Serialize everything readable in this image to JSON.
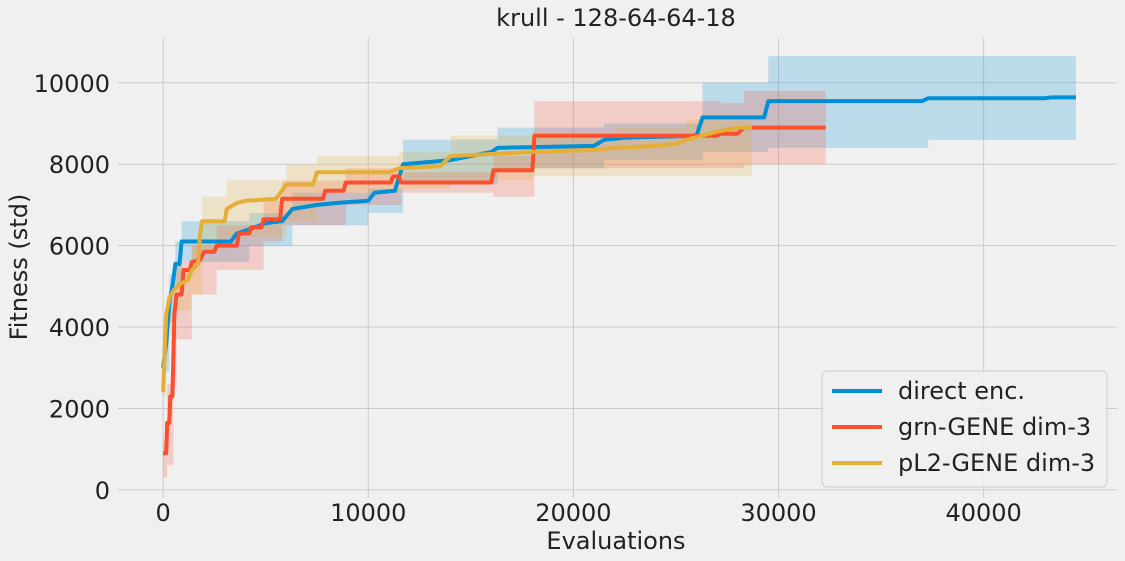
{
  "chart_data": {
    "type": "line",
    "title": "krull - 128-64-64-18",
    "xlabel": "Evaluations",
    "ylabel": "Fitness (std)",
    "xlim": [
      -2200,
      46500
    ],
    "ylim": [
      -200,
      11100
    ],
    "xticks": [
      0,
      10000,
      20000,
      30000,
      40000
    ],
    "yticks": [
      0,
      2000,
      4000,
      6000,
      8000,
      10000
    ],
    "grid": true,
    "legend_position": "lower-right",
    "series": [
      {
        "name": "direct enc.",
        "color": "#008fd5",
        "points": [
          [
            0,
            3000
          ],
          [
            150,
            3600
          ],
          [
            300,
            4600
          ],
          [
            450,
            5000
          ],
          [
            600,
            5550
          ],
          [
            800,
            5550
          ],
          [
            900,
            6100
          ],
          [
            3300,
            6100
          ],
          [
            3600,
            6300
          ],
          [
            4200,
            6400
          ],
          [
            5000,
            6550
          ],
          [
            5800,
            6600
          ],
          [
            6300,
            6900
          ],
          [
            7500,
            7000
          ],
          [
            8500,
            7050
          ],
          [
            10000,
            7100
          ],
          [
            10300,
            7300
          ],
          [
            11300,
            7350
          ],
          [
            11700,
            8000
          ],
          [
            14000,
            8100
          ],
          [
            16000,
            8300
          ],
          [
            16300,
            8400
          ],
          [
            21000,
            8450
          ],
          [
            21500,
            8600
          ],
          [
            22500,
            8650
          ],
          [
            26000,
            8700
          ],
          [
            26300,
            9150
          ],
          [
            29300,
            9150
          ],
          [
            29500,
            9550
          ],
          [
            37000,
            9550
          ],
          [
            37300,
            9620
          ],
          [
            43000,
            9620
          ],
          [
            43300,
            9640
          ],
          [
            44500,
            9640
          ]
        ],
        "band": [
          [
            0,
            2900,
            3800
          ],
          [
            300,
            4100,
            5300
          ],
          [
            600,
            5000,
            6100
          ],
          [
            900,
            5600,
            6600
          ],
          [
            3300,
            5600,
            6600
          ],
          [
            4200,
            6000,
            6800
          ],
          [
            6300,
            6500,
            7300
          ],
          [
            10000,
            6800,
            7400
          ],
          [
            11700,
            7500,
            8600
          ],
          [
            16300,
            7900,
            8900
          ],
          [
            21500,
            8100,
            9000
          ],
          [
            26300,
            8300,
            10000
          ],
          [
            29500,
            8400,
            10650
          ],
          [
            37000,
            8400,
            10650
          ],
          [
            37300,
            8600,
            10650
          ],
          [
            44500,
            8650,
            10650
          ]
        ]
      },
      {
        "name": "grn-GENE dim-3",
        "color": "#fc4f30",
        "points": [
          [
            0,
            900
          ],
          [
            150,
            900
          ],
          [
            200,
            1650
          ],
          [
            300,
            1650
          ],
          [
            350,
            2300
          ],
          [
            450,
            2300
          ],
          [
            500,
            3300
          ],
          [
            550,
            4300
          ],
          [
            650,
            4800
          ],
          [
            900,
            4800
          ],
          [
            1000,
            5400
          ],
          [
            1300,
            5400
          ],
          [
            1400,
            5600
          ],
          [
            1800,
            5650
          ],
          [
            2000,
            5850
          ],
          [
            2500,
            5850
          ],
          [
            2600,
            6000
          ],
          [
            3600,
            6000
          ],
          [
            3700,
            6300
          ],
          [
            4200,
            6300
          ],
          [
            4300,
            6450
          ],
          [
            4800,
            6450
          ],
          [
            4900,
            6650
          ],
          [
            5700,
            6650
          ],
          [
            5800,
            7150
          ],
          [
            7800,
            7150
          ],
          [
            7900,
            7350
          ],
          [
            8800,
            7350
          ],
          [
            8900,
            7550
          ],
          [
            11100,
            7550
          ],
          [
            11200,
            7700
          ],
          [
            11500,
            7700
          ],
          [
            11600,
            7550
          ],
          [
            16000,
            7550
          ],
          [
            16100,
            7850
          ],
          [
            18000,
            7850
          ],
          [
            18100,
            8700
          ],
          [
            27000,
            8700
          ],
          [
            27200,
            8750
          ],
          [
            28000,
            8750
          ],
          [
            28300,
            8900
          ],
          [
            32300,
            8900
          ]
        ],
        "band": [
          [
            0,
            300,
            1200
          ],
          [
            200,
            600,
            2600
          ],
          [
            500,
            2500,
            4000
          ],
          [
            650,
            3700,
            5600
          ],
          [
            1400,
            4800,
            6000
          ],
          [
            2600,
            5400,
            6500
          ],
          [
            4900,
            6100,
            7100
          ],
          [
            5800,
            6500,
            7600
          ],
          [
            8900,
            7000,
            7900
          ],
          [
            11600,
            7300,
            7800
          ],
          [
            16100,
            7200,
            8200
          ],
          [
            18100,
            7900,
            9550
          ],
          [
            27200,
            7900,
            9500
          ],
          [
            28300,
            8000,
            9800
          ],
          [
            32300,
            8000,
            9800
          ]
        ]
      },
      {
        "name": "pL2-GENE dim-3",
        "color": "#e5ae38",
        "points": [
          [
            0,
            2400
          ],
          [
            150,
            4300
          ],
          [
            300,
            4700
          ],
          [
            500,
            4900
          ],
          [
            800,
            5050
          ],
          [
            1200,
            5150
          ],
          [
            1400,
            5400
          ],
          [
            1700,
            5550
          ],
          [
            1800,
            6300
          ],
          [
            1900,
            6600
          ],
          [
            3000,
            6600
          ],
          [
            3100,
            6900
          ],
          [
            3600,
            7050
          ],
          [
            4000,
            7100
          ],
          [
            5500,
            7150
          ],
          [
            6000,
            7500
          ],
          [
            7300,
            7500
          ],
          [
            7500,
            7800
          ],
          [
            11000,
            7800
          ],
          [
            11500,
            7900
          ],
          [
            13500,
            7950
          ],
          [
            14000,
            8200
          ],
          [
            16000,
            8250
          ],
          [
            18000,
            8300
          ],
          [
            21000,
            8350
          ],
          [
            22000,
            8400
          ],
          [
            24000,
            8450
          ],
          [
            25000,
            8500
          ],
          [
            25500,
            8600
          ],
          [
            27000,
            8800
          ],
          [
            28000,
            8900
          ],
          [
            28700,
            8900
          ]
        ],
        "band": [
          [
            0,
            2300,
            3000
          ],
          [
            150,
            3800,
            4800
          ],
          [
            500,
            4400,
            5400
          ],
          [
            1400,
            4800,
            6000
          ],
          [
            1900,
            5900,
            7200
          ],
          [
            3100,
            6200,
            7600
          ],
          [
            6000,
            6600,
            8000
          ],
          [
            7500,
            7300,
            8200
          ],
          [
            11500,
            7400,
            8300
          ],
          [
            14000,
            7600,
            8700
          ],
          [
            18000,
            7700,
            8800
          ],
          [
            22000,
            7700,
            8900
          ],
          [
            25500,
            7700,
            9100
          ],
          [
            28700,
            8300,
            9500
          ]
        ]
      }
    ]
  }
}
